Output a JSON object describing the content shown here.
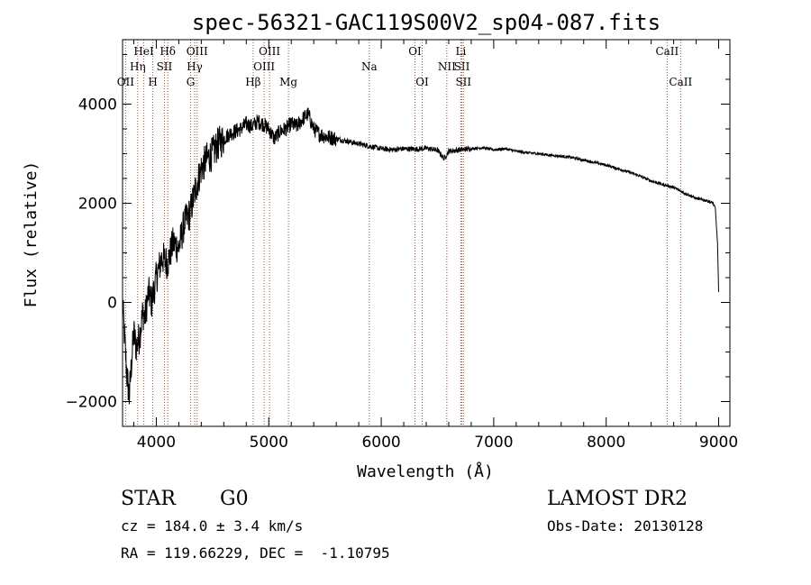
{
  "chart_data": {
    "type": "line",
    "title": "spec-56321-GAC119S00V2_sp04-087.fits",
    "xlabel": "Wavelength (Å)",
    "ylabel": "Flux (relative)",
    "xlim": [
      3700,
      9100
    ],
    "ylim": [
      -2500,
      5300
    ],
    "xticks": [
      4000,
      5000,
      6000,
      7000,
      8000,
      9000
    ],
    "yticks": [
      -2000,
      0,
      2000,
      4000
    ],
    "grid": false,
    "colors": {
      "spectrum": "#000000",
      "line_marker": "#a0522d"
    },
    "series": [
      {
        "values_x": [
          3700,
          3720,
          3740,
          3760,
          3780,
          3800,
          3820,
          3850,
          3880,
          3900,
          3930,
          3960,
          4000,
          4050,
          4100,
          4150,
          4200,
          4250,
          4300,
          4350,
          4400,
          4450,
          4500,
          4550,
          4600,
          4650,
          4700,
          4750,
          4800,
          4850,
          4900,
          4950,
          5000,
          5050,
          5100,
          5150,
          5200,
          5250,
          5300,
          5350,
          5400,
          5450,
          5500,
          5600,
          5700,
          5800,
          5900,
          6000,
          6100,
          6200,
          6300,
          6400,
          6500,
          6560,
          6600,
          6700,
          6800,
          6900,
          7000,
          7100,
          7200,
          7300,
          7400,
          7500,
          7600,
          7700,
          7800,
          7900,
          8000,
          8100,
          8200,
          8300,
          8400,
          8500,
          8600,
          8700,
          8800,
          8900,
          8950,
          8970,
          8990,
          9000
        ],
        "values_y": [
          0,
          -800,
          -1500,
          -1900,
          -1200,
          -600,
          -900,
          -700,
          -200,
          -300,
          200,
          0,
          500,
          900,
          800,
          1200,
          1100,
          1600,
          1800,
          2300,
          2700,
          2900,
          3000,
          3200,
          3300,
          3400,
          3450,
          3500,
          3600,
          3550,
          3650,
          3600,
          3500,
          3300,
          3450,
          3500,
          3600,
          3550,
          3700,
          3800,
          3500,
          3400,
          3350,
          3300,
          3250,
          3200,
          3150,
          3100,
          3080,
          3100,
          3090,
          3110,
          3070,
          2900,
          3050,
          3080,
          3100,
          3120,
          3080,
          3100,
          3050,
          3020,
          3000,
          2970,
          2950,
          2920,
          2870,
          2820,
          2770,
          2700,
          2630,
          2550,
          2450,
          2380,
          2320,
          2200,
          2100,
          2050,
          2000,
          1900,
          1200,
          200
        ]
      }
    ],
    "lines": [
      {
        "label": "OII",
        "wave": 3727,
        "row": 2
      },
      {
        "label": "Hη",
        "wave": 3835,
        "row": 1
      },
      {
        "label": "HeI",
        "wave": 3889,
        "row": 0
      },
      {
        "label": "H",
        "wave": 3969,
        "row": 2
      },
      {
        "label": "SII",
        "wave": 4072,
        "row": 1
      },
      {
        "label": "Hδ",
        "wave": 4102,
        "row": 0
      },
      {
        "label": "G",
        "wave": 4305,
        "row": 2
      },
      {
        "label": "Hγ",
        "wave": 4341,
        "row": 1
      },
      {
        "label": "OIII",
        "wave": 4363,
        "row": 0
      },
      {
        "label": "Hβ",
        "wave": 4861,
        "row": 2
      },
      {
        "label": "OIII",
        "wave": 4959,
        "row": 1
      },
      {
        "label": "OIII",
        "wave": 5007,
        "row": 0
      },
      {
        "label": "Mg",
        "wave": 5175,
        "row": 2
      },
      {
        "label": "Na",
        "wave": 5894,
        "row": 1
      },
      {
        "label": "OI",
        "wave": 6300,
        "row": 0
      },
      {
        "label": "OI",
        "wave": 6364,
        "row": 2
      },
      {
        "label": "NII",
        "wave": 6583,
        "row": 1
      },
      {
        "label": "Li",
        "wave": 6708,
        "row": 0
      },
      {
        "label": "SII",
        "wave": 6717,
        "row": 1
      },
      {
        "label": "SII",
        "wave": 6731,
        "row": 2
      },
      {
        "label": "CaII",
        "wave": 8542,
        "row": 0
      },
      {
        "label": "CaII",
        "wave": 8662,
        "row": 2
      }
    ]
  },
  "footer": {
    "object_class": "STAR",
    "subclass": "G0",
    "survey": "LAMOST DR2",
    "cz": "cz = 184.0 ± 3.4 km/s",
    "obs_date": "Obs-Date: 20130128",
    "coords": "RA = 119.66229, DEC =  -1.10795"
  }
}
